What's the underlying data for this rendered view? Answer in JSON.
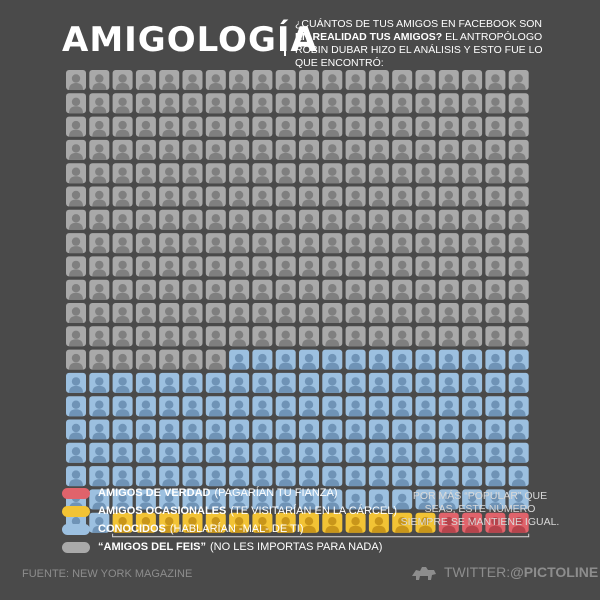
{
  "header": {
    "title": "AMIGOLOGÍA",
    "subtitle_lead": "¿Cuántos de tus amigos en Facebook son",
    "subtitle_emph": "en realidad tus amigos?",
    "subtitle_rest": "El antropólogo Robin Dubar hizo el análisis y esto fue lo que encontró:"
  },
  "chart_data": {
    "type": "waffle",
    "total": 400,
    "grid": {
      "columns": 20,
      "rows": 20
    },
    "fill_order": "bottom-right-up",
    "categories": [
      {
        "key": "verdad",
        "name": "Amigos de verdad",
        "value": 4,
        "color": "#e0636b"
      },
      {
        "key": "ocasionales",
        "name": "Amigos ocasionales",
        "value": 14,
        "color": "#f2c335"
      },
      {
        "key": "conocidos",
        "name": "Conocidos",
        "value": 135,
        "color": "#9cc0e0"
      },
      {
        "key": "feis",
        "name": "\"Amigos del Feis\"",
        "value": 247,
        "color": "#a9a9a9"
      }
    ],
    "highlight_bracket": "ocasionales+verdad"
  },
  "legend": [
    {
      "name": "Amigos de verdad",
      "desc": "(pagarían tu fianza)",
      "color": "#e0636b"
    },
    {
      "name": "Amigos ocasionales",
      "desc": "(te visitarían en la cárcel)",
      "color": "#f2c335"
    },
    {
      "name": "Conocidos",
      "desc": "(hablarían -mal- de ti)",
      "color": "#9cc0e0"
    },
    {
      "name": "“Amigos del Feis”",
      "desc": "(no les importas para nada)",
      "color": "#a9a9a9"
    }
  ],
  "note": "Por más “popular” que seas, este número siempre se mantiene igual.",
  "source": "Fuente: New York Magazine",
  "credit": {
    "prefix": "Twitter:",
    "handle": "@Pictoline"
  }
}
